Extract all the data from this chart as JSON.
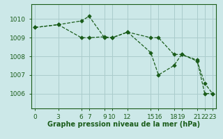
{
  "title": "Graphe pression niveau de la mer (hPa)",
  "background_color": "#cce8e8",
  "line_color": "#1a5c1a",
  "grid_color": "#aacccc",
  "xticks": [
    0,
    3,
    6,
    7,
    9,
    10,
    12,
    15,
    16,
    18,
    19,
    21,
    22,
    23
  ],
  "yticks": [
    1006,
    1007,
    1008,
    1009,
    1010
  ],
  "ylim": [
    1005.2,
    1010.8
  ],
  "xlim": [
    -0.5,
    23.5
  ],
  "series1_x": [
    0,
    3,
    6,
    7,
    9,
    10,
    12,
    15,
    16,
    18,
    19,
    21,
    22,
    23
  ],
  "series1_y": [
    1009.55,
    1009.7,
    1009.9,
    1010.15,
    1009.0,
    1009.0,
    1009.3,
    1008.2,
    1007.0,
    1007.5,
    1008.1,
    1007.8,
    1006.0,
    1006.0
  ],
  "series2_x": [
    0,
    3,
    6,
    7,
    9,
    10,
    12,
    15,
    16,
    18,
    19,
    21,
    22,
    23
  ],
  "series2_y": [
    1009.55,
    1009.7,
    1009.0,
    1009.0,
    1009.05,
    1009.0,
    1009.3,
    1009.0,
    1009.0,
    1008.1,
    1008.1,
    1007.75,
    1006.55,
    1006.0
  ]
}
